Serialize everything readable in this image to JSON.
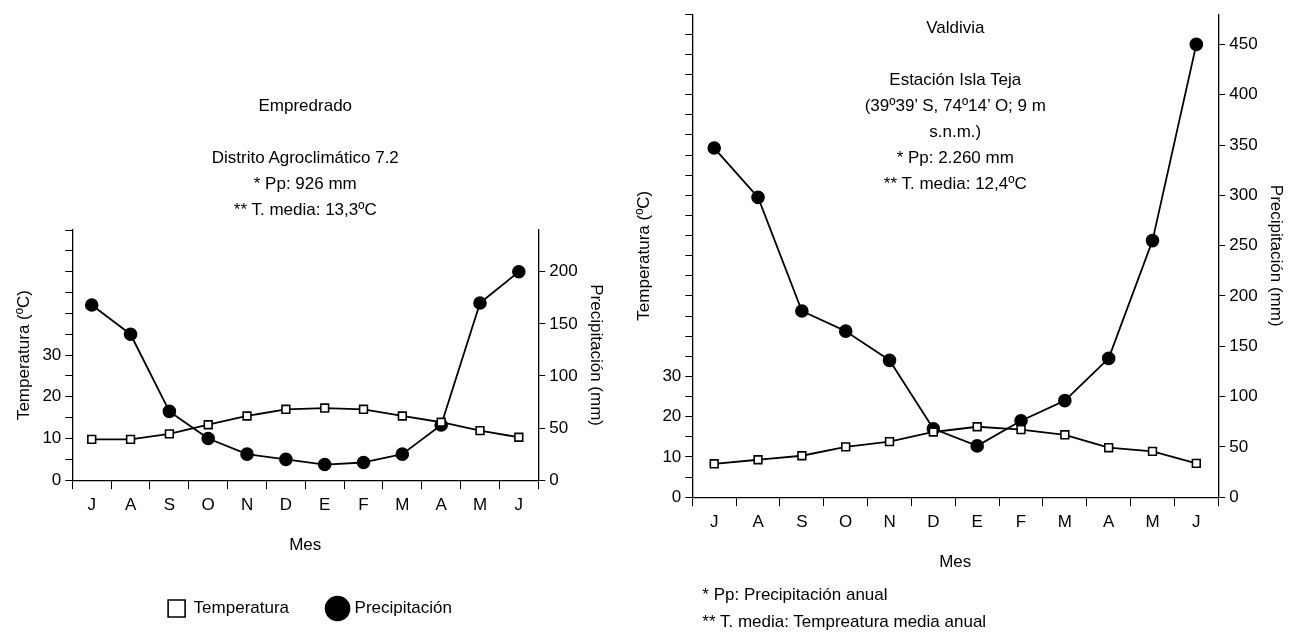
{
  "chart_data": [
    {
      "type": "line",
      "title": "Empredrado",
      "subtitle": "Distrito Agroclimático 7.2\n* Pp: 926 mm\n** T. media: 13,3ºC",
      "xlabel": "Mes",
      "ylabel": "Temperatura (ºC)",
      "y2label": "Precipitación (mm)",
      "categories": [
        "J",
        "A",
        "S",
        "O",
        "N",
        "D",
        "E",
        "F",
        "M",
        "A",
        "M",
        "J"
      ],
      "series": [
        {
          "name": "Temperatura",
          "color": "#000000",
          "marker": "square",
          "values": [
            9.8,
            9.8,
            11.1,
            13.3,
            15.4,
            17.0,
            17.3,
            17.0,
            15.4,
            13.9,
            11.9,
            10.3
          ]
        },
        {
          "name": "Precipitación",
          "color": "#000000",
          "marker": "circle",
          "axis": "y2",
          "values": [
            168,
            140,
            66,
            40,
            25,
            20,
            15,
            17,
            25,
            53,
            170,
            200
          ]
        }
      ],
      "ylim": [
        0,
        60
      ],
      "yticks": [
        0,
        {
          "value": 5,
          "label": null
        },
        10,
        {
          "value": 15,
          "label": null
        },
        20,
        {
          "value": 25,
          "label": null
        },
        30,
        {
          "value": 35,
          "label": null
        },
        {
          "value": 40,
          "label": null
        },
        {
          "value": 45,
          "label": null
        },
        {
          "value": 50,
          "label": null
        },
        {
          "value": 55,
          "label": null
        },
        {
          "value": 60,
          "label": null
        }
      ],
      "y2lim": [
        0,
        240
      ],
      "y2ticks": [
        0,
        50,
        100,
        150,
        200
      ],
      "grid": false,
      "legend": "bottom",
      "line_style": "solid"
    },
    {
      "type": "line",
      "title": "Valdivia",
      "subtitle": "Estación Isla Teja\n(39º39’ S, 74º14’ O; 9 m\ns.n.m.)\n* Pp: 2.260 mm\n** T. media: 12,4ºC",
      "xlabel": "Mes",
      "ylabel": "Temperatura (ºC)",
      "y2label": "Precipitación (mm)",
      "annotations": [
        "* Pp: Precipitación anual",
        "** T. media: Tempreatura media anual"
      ],
      "categories": [
        "J",
        "A",
        "S",
        "O",
        "N",
        "D",
        "E",
        "F",
        "M",
        "A",
        "M",
        "J"
      ],
      "series": [
        {
          "color": "#000000",
          "marker": "square",
          "values": [
            8.3,
            9.3,
            10.3,
            12.5,
            13.8,
            16.2,
            17.5,
            16.8,
            15.5,
            12.3,
            11.4,
            8.4
          ]
        },
        {
          "color": "#000000",
          "marker": "circle",
          "axis": "y2",
          "values": [
            347,
            298,
            185,
            165,
            136,
            68,
            51,
            76,
            96,
            138,
            255,
            450
          ]
        }
      ],
      "ylim": [
        0,
        120
      ],
      "yticks": [
        0,
        {
          "value": 5,
          "label": null
        },
        10,
        {
          "value": 15,
          "label": null
        },
        20,
        {
          "value": 25,
          "label": null
        },
        30,
        {
          "value": 35,
          "label": null
        },
        {
          "value": 40,
          "label": null
        },
        {
          "value": 45,
          "label": null
        },
        {
          "value": 50,
          "label": null
        },
        {
          "value": 55,
          "label": null
        },
        {
          "value": 60,
          "label": null
        },
        {
          "value": 65,
          "label": null
        },
        {
          "value": 70,
          "label": null
        },
        {
          "value": 75,
          "label": null
        },
        {
          "value": 80,
          "label": null
        },
        {
          "value": 85,
          "label": null
        },
        {
          "value": 90,
          "label": null
        },
        {
          "value": 95,
          "label": null
        },
        {
          "value": 100,
          "label": null
        },
        {
          "value": 105,
          "label": null
        },
        {
          "value": 110,
          "label": null
        },
        {
          "value": 115,
          "label": null
        },
        {
          "value": 120,
          "label": null
        }
      ],
      "y2lim": [
        0,
        480
      ],
      "y2ticks": [
        0,
        50,
        100,
        150,
        200,
        250,
        300,
        350,
        400,
        450
      ],
      "grid": false,
      "legend": false,
      "line_style": "solid"
    }
  ]
}
